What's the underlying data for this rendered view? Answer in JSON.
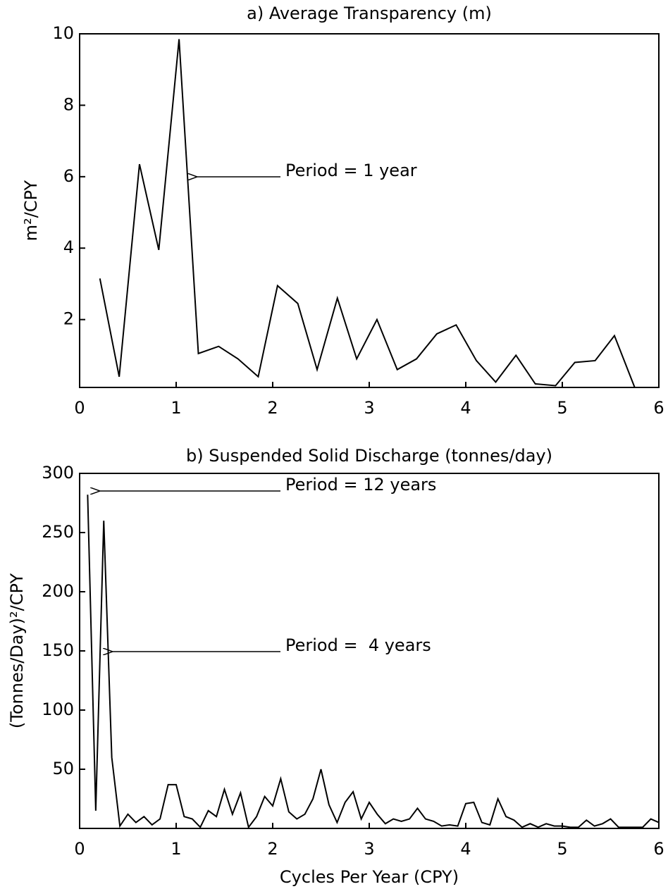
{
  "chart_data": [
    {
      "type": "line",
      "title": "a) Average Transparency (m)",
      "ylabel": "m²/CPY",
      "x": [
        0.21,
        0.41,
        0.62,
        0.82,
        1.03,
        1.23,
        1.44,
        1.64,
        1.85,
        2.05,
        2.26,
        2.46,
        2.67,
        2.87,
        3.08,
        3.29,
        3.49,
        3.7,
        3.9,
        4.11,
        4.31,
        4.52,
        4.72,
        4.93,
        5.13,
        5.34,
        5.54,
        5.75
      ],
      "series": [
        {
          "color": "#000000",
          "values": [
            3.15,
            0.4,
            6.35,
            3.95,
            9.85,
            1.05,
            1.25,
            0.9,
            0.4,
            2.95,
            2.45,
            0.6,
            2.6,
            0.9,
            2.0,
            0.6,
            0.9,
            1.6,
            1.85,
            0.85,
            0.25,
            1.0,
            0.2,
            0.15,
            0.8,
            0.85,
            1.55,
            0.1
          ]
        }
      ],
      "xlim": [
        0,
        6
      ],
      "xticks": [
        0,
        1,
        2,
        3,
        4,
        5,
        6
      ],
      "ylim": [
        0.1,
        10
      ],
      "yticks": [
        2,
        4,
        6,
        8,
        10
      ],
      "grid": false,
      "annotations": [
        "Period = 1 year"
      ]
    },
    {
      "type": "line",
      "title": "b) Suspended Solid Discharge (tonnes/day)",
      "ylabel": "(Tonnes/Day)²/CPY",
      "xlabel": "Cycles Per Year (CPY)",
      "x": [
        0.083,
        0.167,
        0.25,
        0.333,
        0.417,
        0.5,
        0.583,
        0.667,
        0.75,
        0.833,
        0.917,
        1.0,
        1.083,
        1.167,
        1.25,
        1.333,
        1.417,
        1.5,
        1.583,
        1.667,
        1.75,
        1.833,
        1.917,
        2.0,
        2.083,
        2.167,
        2.25,
        2.333,
        2.417,
        2.5,
        2.583,
        2.667,
        2.75,
        2.833,
        2.917,
        3.0,
        3.083,
        3.167,
        3.25,
        3.333,
        3.417,
        3.5,
        3.583,
        3.667,
        3.75,
        3.833,
        3.917,
        4.0,
        4.083,
        4.167,
        4.25,
        4.333,
        4.417,
        4.5,
        4.583,
        4.667,
        4.75,
        4.833,
        4.917,
        5.0,
        5.083,
        5.167,
        5.25,
        5.333,
        5.417,
        5.5,
        5.583,
        5.667,
        5.75,
        5.833,
        5.917,
        6.0
      ],
      "series": [
        {
          "color": "#000000",
          "values": [
            282,
            15,
            260,
            60,
            2,
            12,
            5,
            10,
            3,
            8,
            37,
            37,
            10,
            8,
            1,
            15,
            10,
            33,
            12,
            30,
            1,
            10,
            27,
            19,
            42,
            14,
            8,
            12,
            25,
            50,
            20,
            5,
            22,
            31,
            8,
            22,
            12,
            4,
            8,
            6,
            8,
            17,
            8,
            6,
            2,
            3,
            2,
            21,
            22,
            5,
            3,
            25,
            10,
            7,
            1,
            4,
            1,
            4,
            2,
            2,
            1,
            1,
            7,
            2,
            4,
            8,
            1,
            1,
            1,
            1,
            8,
            5
          ]
        }
      ],
      "xlim": [
        0,
        6
      ],
      "xticks": [
        0,
        1,
        2,
        3,
        4,
        5,
        6
      ],
      "ylim": [
        0,
        300
      ],
      "yticks": [
        50,
        100,
        150,
        200,
        250,
        300
      ],
      "grid": false,
      "annotations": [
        "Period = 12 years",
        "Period =  4 years"
      ]
    }
  ]
}
